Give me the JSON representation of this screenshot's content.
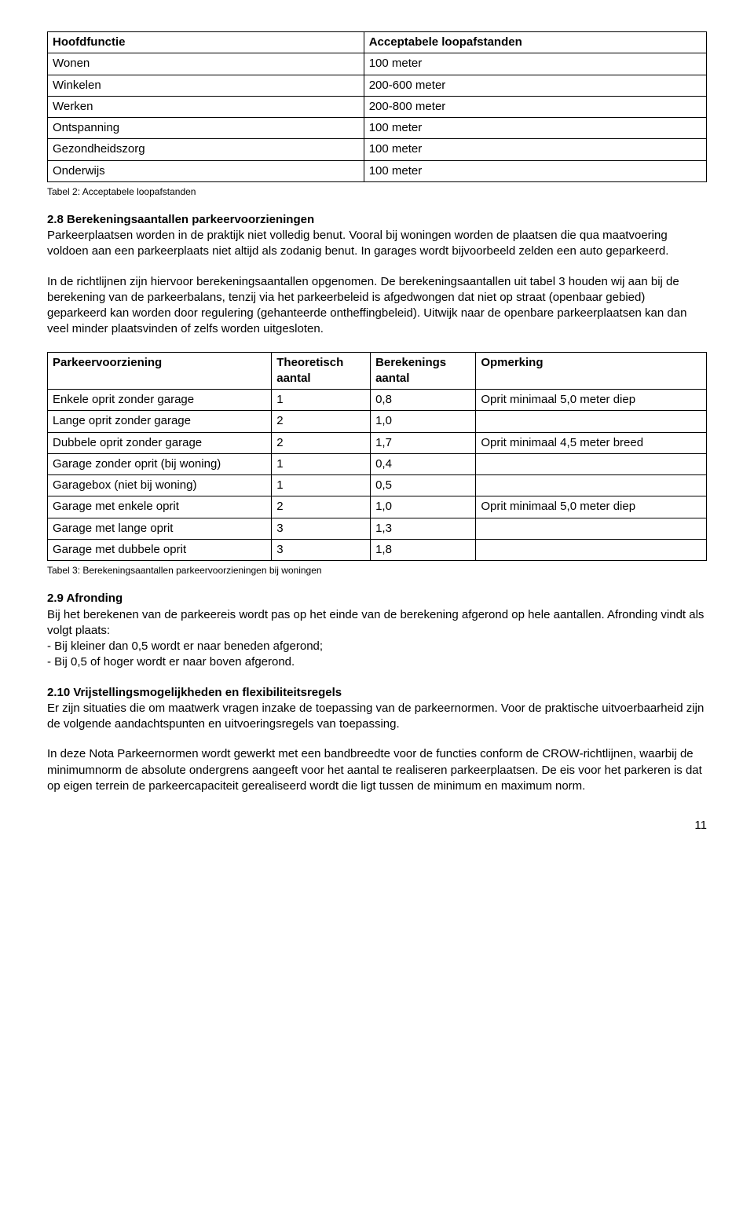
{
  "table1": {
    "headers": [
      "Hoofdfunctie",
      "Acceptabele loopafstanden"
    ],
    "rows": [
      [
        "Wonen",
        "100 meter"
      ],
      [
        "Winkelen",
        "200-600 meter"
      ],
      [
        "Werken",
        "200-800 meter"
      ],
      [
        "Ontspanning",
        "100 meter"
      ],
      [
        "Gezondheidszorg",
        "100 meter"
      ],
      [
        "Onderwijs",
        "100 meter"
      ]
    ],
    "caption": "Tabel 2: Acceptabele loopafstanden"
  },
  "sec28": {
    "heading": "2.8 Berekeningsaantallen parkeervoorzieningen",
    "p1": "Parkeerplaatsen worden in de praktijk niet volledig benut. Vooral bij woningen worden de plaatsen die qua maatvoering voldoen aan een parkeerplaats niet altijd als zodanig benut. In garages wordt bijvoorbeeld zelden een auto geparkeerd.",
    "p2": "In de richtlijnen zijn hiervoor berekeningsaantallen opgenomen. De berekeningsaantallen uit tabel 3 houden wij aan bij de berekening van de parkeerbalans, tenzij via het parkeerbeleid is afgedwongen dat niet op straat (openbaar gebied) geparkeerd kan worden door regulering (gehanteerde ontheffingbeleid). Uitwijk naar de openbare parkeerplaatsen kan dan veel minder plaatsvinden of zelfs worden uitgesloten."
  },
  "table2": {
    "headers": [
      "Parkeervoorziening",
      "Theoretisch aantal",
      "Berekenings aantal",
      "Opmerking"
    ],
    "rows": [
      [
        "Enkele oprit zonder garage",
        "1",
        "0,8",
        "Oprit minimaal 5,0 meter diep"
      ],
      [
        "Lange oprit zonder garage",
        "2",
        "1,0",
        ""
      ],
      [
        "Dubbele oprit zonder garage",
        "2",
        "1,7",
        "Oprit minimaal 4,5 meter breed"
      ],
      [
        "Garage zonder oprit (bij woning)",
        "1",
        "0,4",
        ""
      ],
      [
        "Garagebox (niet bij woning)",
        "1",
        "0,5",
        ""
      ],
      [
        "Garage met enkele oprit",
        "2",
        "1,0",
        "Oprit minimaal 5,0 meter diep"
      ],
      [
        "Garage met lange oprit",
        "3",
        "1,3",
        ""
      ],
      [
        "Garage met dubbele oprit",
        "3",
        "1,8",
        ""
      ]
    ],
    "caption": "Tabel 3: Berekeningsaantallen parkeervoorzieningen bij woningen"
  },
  "sec29": {
    "heading": "2.9 Afronding",
    "p1": "Bij het berekenen van de parkeereis wordt pas op het einde van de berekening afgerond op hele aantallen. Afronding vindt als volgt plaats:",
    "b1": "- Bij kleiner dan 0,5 wordt er naar beneden afgerond;",
    "b2": "- Bij 0,5 of hoger wordt er naar boven afgerond."
  },
  "sec210": {
    "heading": "2.10 Vrijstellingsmogelijkheden en flexibiliteitsregels",
    "p1": "Er zijn situaties die om maatwerk vragen inzake de toepassing van de parkeernormen. Voor de praktische uitvoerbaarheid zijn de volgende aandachtspunten en uitvoeringsregels van toepassing.",
    "p2": "In deze Nota Parkeernormen wordt gewerkt met een bandbreedte voor de functies conform de CROW-richtlijnen, waarbij de minimumnorm de absolute ondergrens aangeeft voor het aantal te realiseren parkeerplaatsen. De eis voor het parkeren is dat op eigen terrein de parkeercapaciteit gerealiseerd wordt die ligt tussen de minimum en maximum norm."
  },
  "pageNumber": "11"
}
